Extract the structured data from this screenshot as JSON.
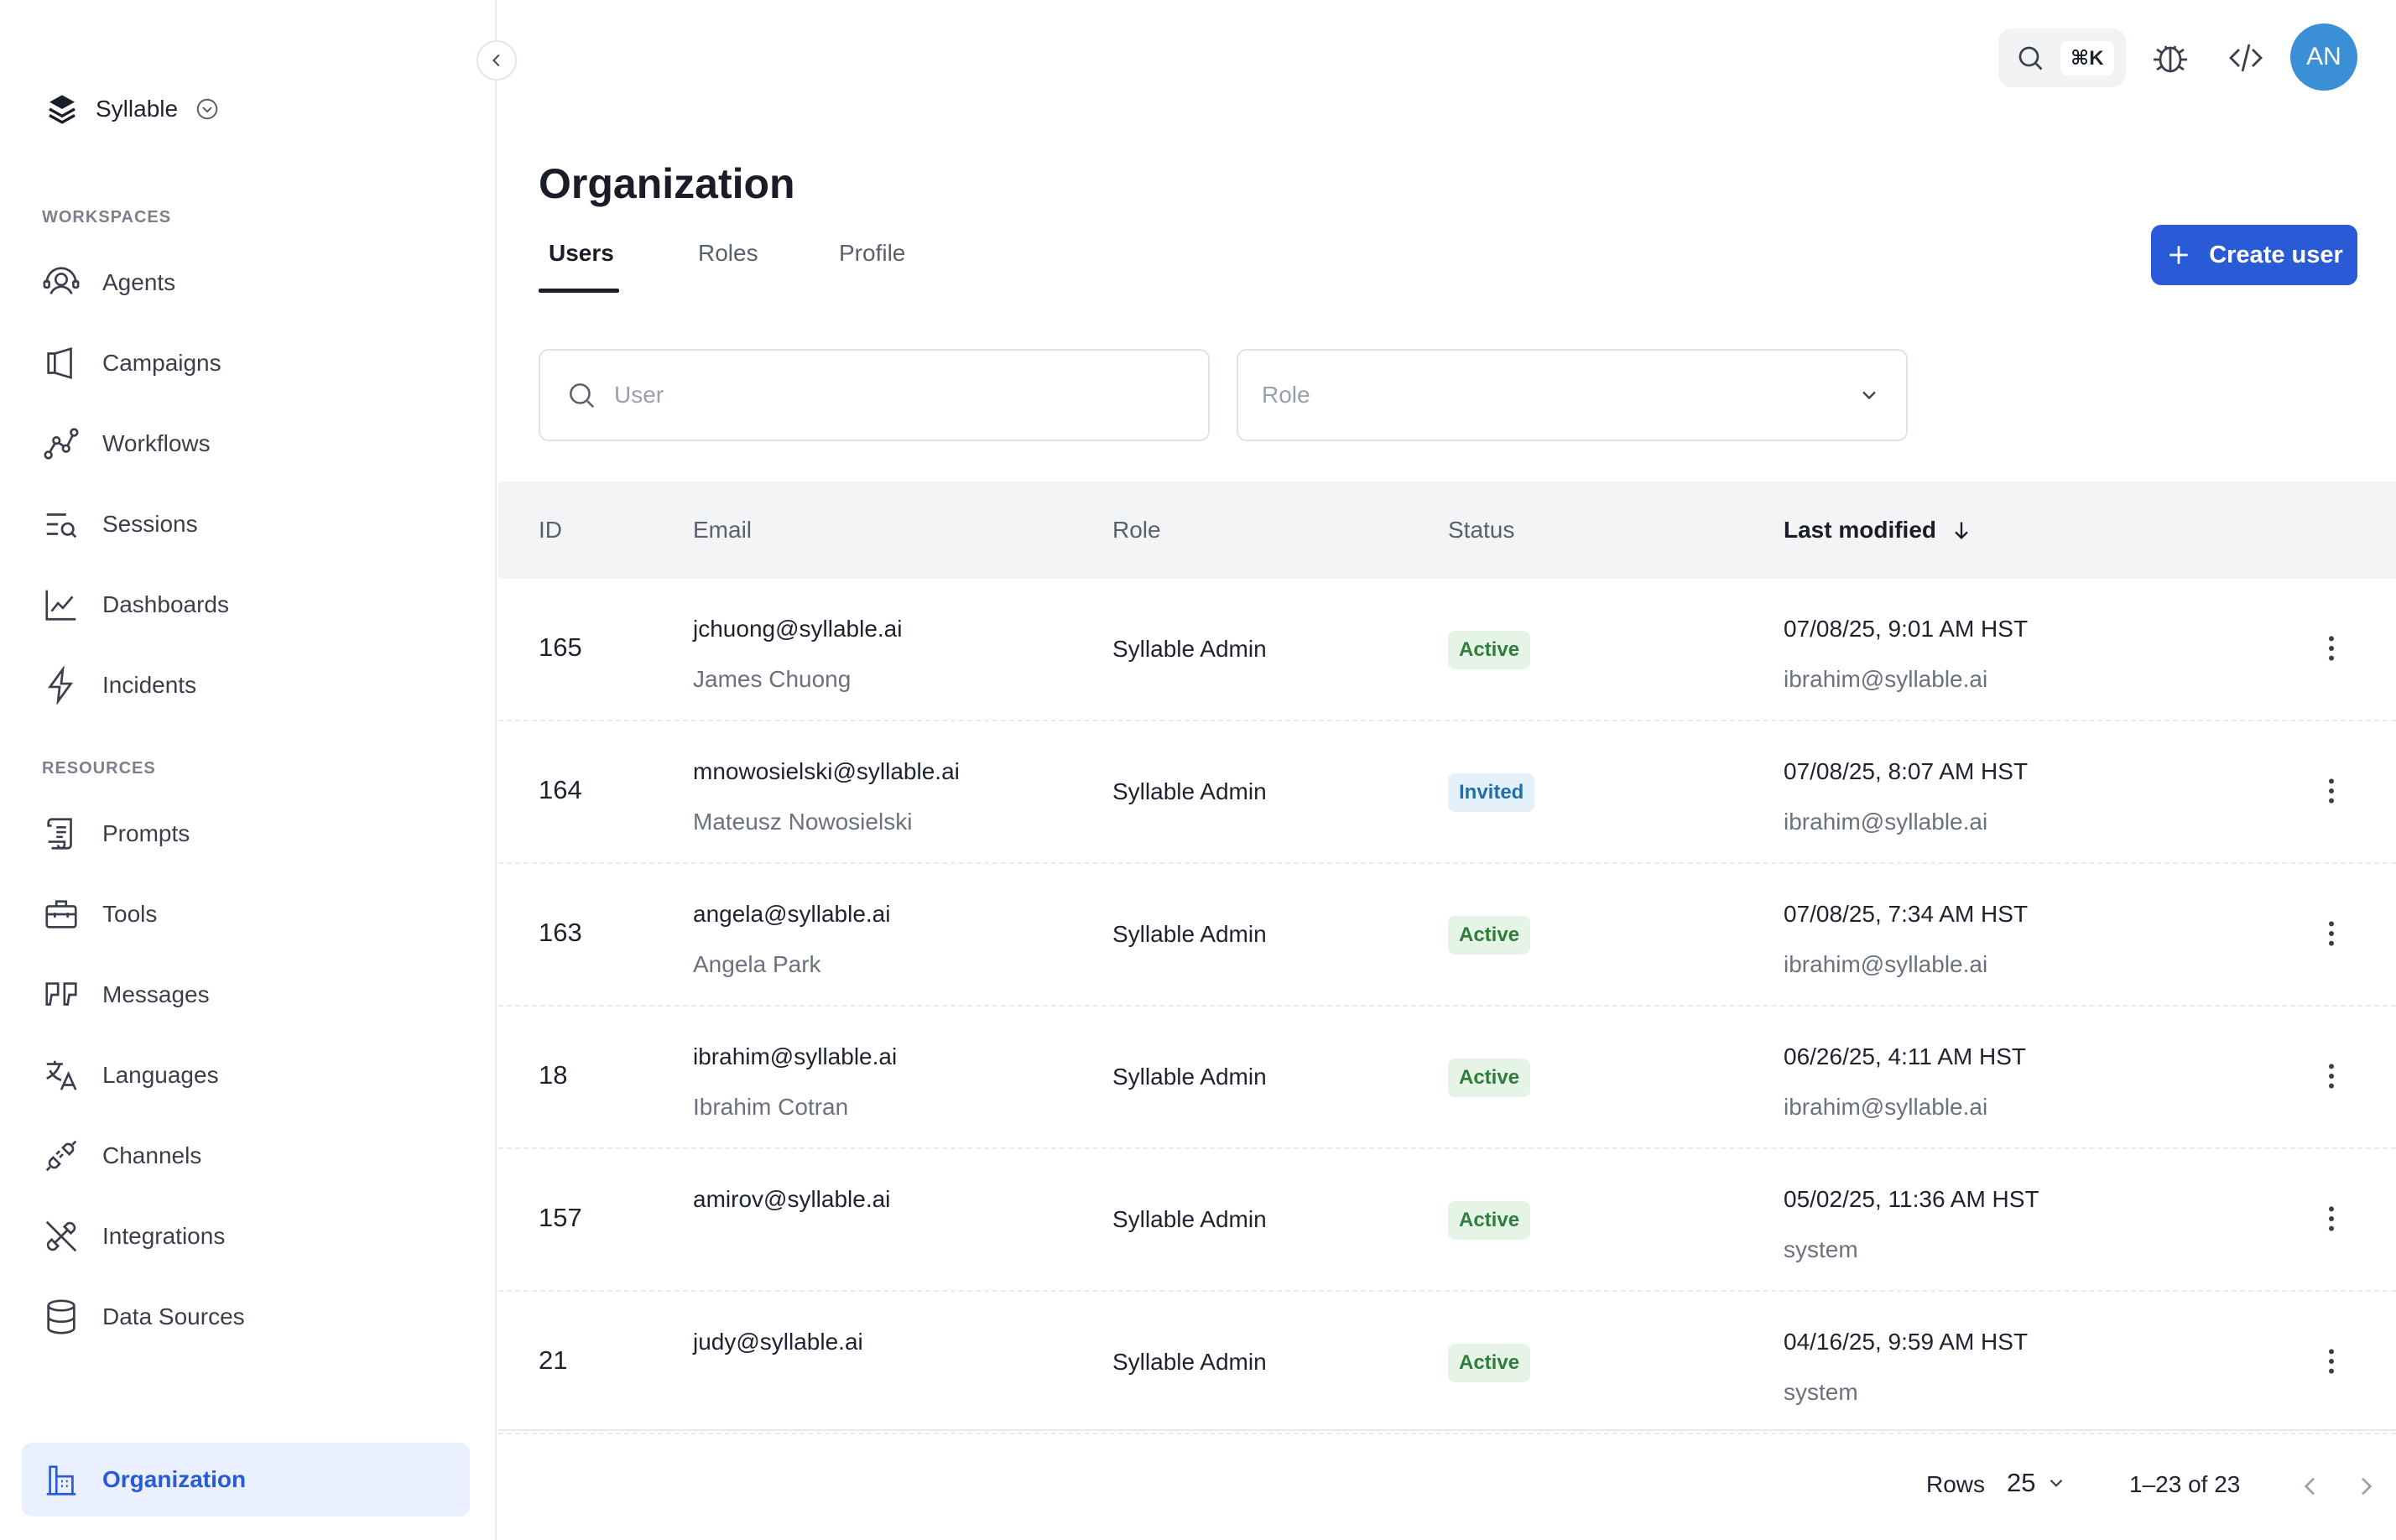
{
  "sidebar": {
    "brand": "Syllable",
    "sections": {
      "workspaces": "WORKSPACES",
      "resources": "RESOURCES"
    },
    "items": {
      "agents": "Agents",
      "campaigns": "Campaigns",
      "workflows": "Workflows",
      "sessions": "Sessions",
      "dashboards": "Dashboards",
      "incidents": "Incidents",
      "prompts": "Prompts",
      "tools": "Tools",
      "messages": "Messages",
      "languages": "Languages",
      "channels": "Channels",
      "integrations": "Integrations",
      "data_sources": "Data Sources",
      "organization": "Organization"
    }
  },
  "topbar": {
    "shortcut": "⌘K",
    "avatar_initials": "AN"
  },
  "header": {
    "title": "Organization",
    "tabs": [
      "Users",
      "Roles",
      "Profile"
    ],
    "create_button": "Create user"
  },
  "filters": {
    "user_placeholder": "User",
    "role_placeholder": "Role"
  },
  "table": {
    "columns": {
      "id": "ID",
      "email": "Email",
      "role": "Role",
      "status": "Status",
      "last_modified": "Last modified"
    },
    "rows": [
      {
        "id": "165",
        "email": "jchuong@syllable.ai",
        "name": "James Chuong",
        "role": "Syllable Admin",
        "status": "Active",
        "modified": "07/08/25, 9:01 AM HST",
        "modified_by": "ibrahim@syllable.ai"
      },
      {
        "id": "164",
        "email": "mnowosielski@syllable.ai",
        "name": "Mateusz Nowosielski",
        "role": "Syllable Admin",
        "status": "Invited",
        "modified": "07/08/25, 8:07 AM HST",
        "modified_by": "ibrahim@syllable.ai"
      },
      {
        "id": "163",
        "email": "angela@syllable.ai",
        "name": "Angela Park",
        "role": "Syllable Admin",
        "status": "Active",
        "modified": "07/08/25, 7:34 AM HST",
        "modified_by": "ibrahim@syllable.ai"
      },
      {
        "id": "18",
        "email": "ibrahim@syllable.ai",
        "name": "Ibrahim Cotran",
        "role": "Syllable Admin",
        "status": "Active",
        "modified": "06/26/25, 4:11 AM HST",
        "modified_by": "ibrahim@syllable.ai"
      },
      {
        "id": "157",
        "email": "amirov@syllable.ai",
        "name": "",
        "role": "Syllable Admin",
        "status": "Active",
        "modified": "05/02/25, 11:36 AM HST",
        "modified_by": "system"
      },
      {
        "id": "21",
        "email": "judy@syllable.ai",
        "name": "",
        "role": "Syllable Admin",
        "status": "Active",
        "modified": "04/16/25, 9:59 AM HST",
        "modified_by": "system"
      }
    ]
  },
  "footer": {
    "rows_label": "Rows",
    "rows_value": "25",
    "range": "1–23 of 23"
  },
  "colors": {
    "accent": "#2a5bd7",
    "active_bg": "#e6f4e8",
    "invited_bg": "#e4f1fb",
    "avatar": "#3b8fd6"
  }
}
